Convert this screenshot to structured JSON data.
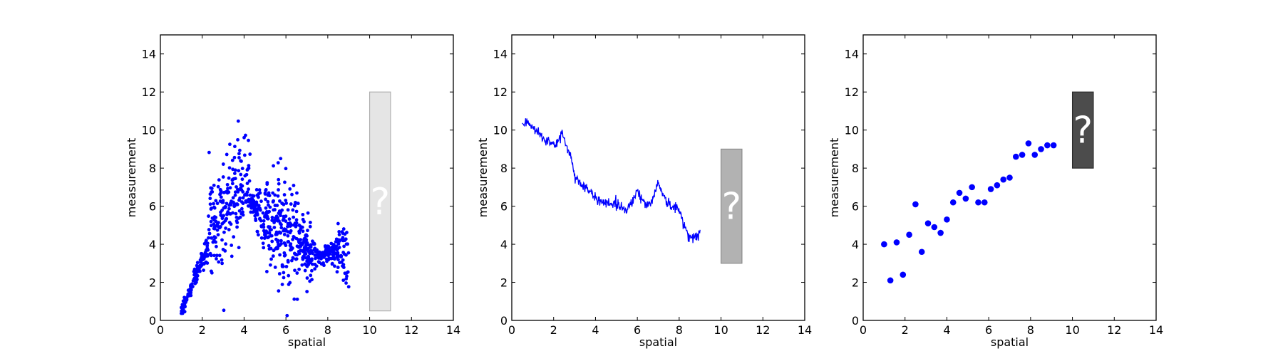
{
  "chart_data": [
    {
      "type": "scatter",
      "marker": "small-dot",
      "color": "#0000ff",
      "xlabel": "spatial",
      "ylabel": "measurement",
      "xlim": [
        0,
        14
      ],
      "ylim": [
        0,
        15
      ],
      "xticks": [
        "0",
        "2",
        "4",
        "6",
        "8",
        "10",
        "12",
        "14"
      ],
      "yticks": [
        "0",
        "2",
        "4",
        "6",
        "8",
        "10",
        "12",
        "14"
      ],
      "grid": false,
      "generated_points": {
        "count": 900,
        "x_range": [
          1.0,
          9.0
        ],
        "description_of_shape": "rises from ~0.5 at x=1 to a wide band (5-9) peaking near x=3-4, narrow near 6 at x=4.5, widely scattered 0-5 at x=5-7, narrow near 3.3 at x=8, widening 2-6.7 at x=9"
      },
      "annotation": {
        "label": "?",
        "x_range": [
          10,
          11
        ],
        "y_range": [
          0.5,
          12
        ],
        "fill": "#e5e5e5",
        "edge": "#b0b0b0"
      }
    },
    {
      "type": "line",
      "color": "#0000ff",
      "xlabel": "spatial",
      "ylabel": "measurement",
      "xlim": [
        0,
        14
      ],
      "ylim": [
        0,
        15
      ],
      "xticks": [
        "0",
        "2",
        "4",
        "6",
        "8",
        "10",
        "12",
        "14"
      ],
      "yticks": [
        "0",
        "2",
        "4",
        "6",
        "8",
        "10",
        "12",
        "14"
      ],
      "grid": false,
      "trend_points": {
        "x": [
          0.5,
          1.0,
          1.5,
          2.0,
          2.2,
          2.4,
          2.6,
          2.8,
          3.0,
          3.3,
          3.6,
          4.0,
          4.5,
          5.0,
          5.5,
          6.0,
          6.3,
          6.6,
          7.0,
          7.3,
          7.6,
          8.0,
          8.3,
          8.6,
          8.8,
          9.0
        ],
        "y": [
          10.4,
          10.1,
          9.6,
          9.2,
          9.3,
          9.9,
          9.2,
          8.7,
          7.6,
          7.2,
          6.9,
          6.4,
          6.2,
          6.1,
          5.8,
          6.8,
          6.2,
          6.0,
          7.3,
          6.4,
          6.0,
          5.8,
          4.8,
          4.3,
          4.4,
          4.6
        ]
      },
      "annotation": {
        "label": "?",
        "x_range": [
          10,
          11
        ],
        "y_range": [
          3,
          9
        ],
        "fill": "#b2b2b2",
        "edge": "#8c8c8c"
      }
    },
    {
      "type": "scatter",
      "marker": "large-dot",
      "color": "#0000ff",
      "xlabel": "spatial",
      "ylabel": "measurement",
      "xlim": [
        0,
        14
      ],
      "ylim": [
        0,
        15
      ],
      "xticks": [
        "0",
        "2",
        "4",
        "6",
        "8",
        "10",
        "12",
        "14"
      ],
      "yticks": [
        "0",
        "2",
        "4",
        "6",
        "8",
        "10",
        "12",
        "14"
      ],
      "grid": false,
      "x": [
        1.0,
        1.3,
        1.6,
        1.9,
        2.2,
        2.5,
        2.8,
        3.1,
        3.4,
        3.7,
        4.0,
        4.3,
        4.6,
        4.9,
        5.2,
        5.5,
        5.8,
        6.1,
        6.4,
        6.7,
        7.0,
        7.3,
        7.6,
        7.9,
        8.2,
        8.5,
        8.8,
        9.1
      ],
      "y": [
        4.0,
        2.1,
        4.1,
        2.4,
        4.5,
        6.1,
        3.6,
        5.1,
        4.9,
        4.6,
        5.3,
        6.2,
        6.7,
        6.4,
        7.0,
        6.2,
        6.2,
        6.9,
        7.1,
        7.4,
        7.5,
        8.6,
        8.7,
        9.3,
        8.7,
        9.0,
        9.2,
        9.2
      ],
      "annotation": {
        "label": "?",
        "x_range": [
          10,
          11
        ],
        "y_range": [
          8,
          12
        ],
        "fill": "#4c4c4c",
        "edge": "#2a2a2a"
      }
    }
  ]
}
